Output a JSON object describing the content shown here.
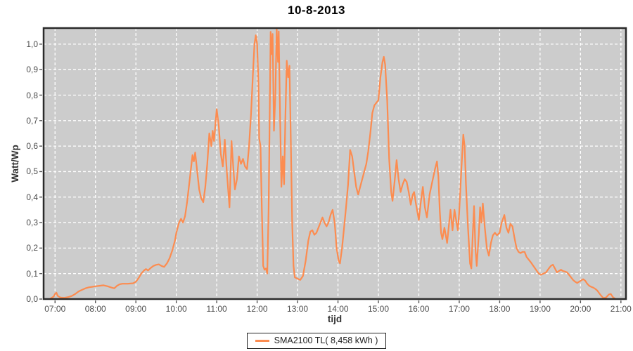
{
  "title": "10-8-2013",
  "colors": {
    "line": "#fc8c50",
    "plot_bg": "#cccccc",
    "grid": "#ffffff",
    "plot_border": "#2a2a2a",
    "tick_mark": "#555555",
    "tick_label": "#4d4d4d",
    "axis_title": "#333333"
  },
  "legend": {
    "label": "SMA2100 TL( 8,458 kWh )"
  },
  "chart_data": {
    "type": "line",
    "title": "10-8-2013",
    "xlabel": "tijd",
    "ylabel": "Watt/Wp",
    "x_ticks": [
      "07:00",
      "08:00",
      "09:00",
      "10:00",
      "11:00",
      "12:00",
      "13:00",
      "14:00",
      "15:00",
      "16:00",
      "17:00",
      "18:00",
      "19:00",
      "20:00",
      "21:00"
    ],
    "y_ticks": [
      "0,0",
      "0,1",
      "0,2",
      "0,3",
      "0,4",
      "0,5",
      "0,6",
      "0,7",
      "0,8",
      "0,9",
      "1,0"
    ],
    "y_tick_values": [
      0,
      0.1,
      0.2,
      0.3,
      0.4,
      0.5,
      0.6,
      0.7,
      0.8,
      0.9,
      1.0
    ],
    "ylim": [
      0,
      1.063
    ],
    "xlim_hours": [
      6.717,
      21.125
    ],
    "grid": "white dashed, hourly vertical and 0.1 horizontal, gray plot background",
    "legend_position": "bottom-center",
    "series": [
      {
        "name": "SMA2100 TL( 8,458 kWh )",
        "color": "#fc8c50",
        "points": [
          [
            "06:52",
            0
          ],
          [
            "06:55",
            0.005
          ],
          [
            "06:58",
            0.01
          ],
          [
            "07:00",
            0.02
          ],
          [
            "07:02",
            0.025
          ],
          [
            "07:04",
            0.012
          ],
          [
            "07:08",
            0.006
          ],
          [
            "07:14",
            0.005
          ],
          [
            "07:20",
            0.008
          ],
          [
            "07:25",
            0.012
          ],
          [
            "07:30",
            0.02
          ],
          [
            "07:35",
            0.03
          ],
          [
            "07:40",
            0.036
          ],
          [
            "07:45",
            0.042
          ],
          [
            "07:50",
            0.046
          ],
          [
            "07:55",
            0.048
          ],
          [
            "08:00",
            0.05
          ],
          [
            "08:06",
            0.052
          ],
          [
            "08:12",
            0.054
          ],
          [
            "08:18",
            0.05
          ],
          [
            "08:24",
            0.045
          ],
          [
            "08:28",
            0.042
          ],
          [
            "08:32",
            0.052
          ],
          [
            "08:36",
            0.058
          ],
          [
            "08:40",
            0.06
          ],
          [
            "08:48",
            0.06
          ],
          [
            "08:56",
            0.062
          ],
          [
            "09:00",
            0.068
          ],
          [
            "09:04",
            0.082
          ],
          [
            "09:08",
            0.1
          ],
          [
            "09:12",
            0.112
          ],
          [
            "09:15",
            0.118
          ],
          [
            "09:18",
            0.112
          ],
          [
            "09:22",
            0.122
          ],
          [
            "09:26",
            0.13
          ],
          [
            "09:30",
            0.134
          ],
          [
            "09:34",
            0.136
          ],
          [
            "09:38",
            0.13
          ],
          [
            "09:42",
            0.126
          ],
          [
            "09:46",
            0.14
          ],
          [
            "09:50",
            0.16
          ],
          [
            "09:54",
            0.19
          ],
          [
            "09:58",
            0.23
          ],
          [
            "10:00",
            0.26
          ],
          [
            "10:04",
            0.3
          ],
          [
            "10:07",
            0.315
          ],
          [
            "10:10",
            0.3
          ],
          [
            "10:13",
            0.325
          ],
          [
            "10:16",
            0.38
          ],
          [
            "10:20",
            0.47
          ],
          [
            "10:24",
            0.565
          ],
          [
            "10:26",
            0.54
          ],
          [
            "10:28",
            0.575
          ],
          [
            "10:31",
            0.5
          ],
          [
            "10:34",
            0.43
          ],
          [
            "10:37",
            0.395
          ],
          [
            "10:40",
            0.38
          ],
          [
            "10:43",
            0.44
          ],
          [
            "10:46",
            0.53
          ],
          [
            "10:49",
            0.65
          ],
          [
            "10:52",
            0.6
          ],
          [
            "10:54",
            0.66
          ],
          [
            "10:56",
            0.62
          ],
          [
            "11:00",
            0.745
          ],
          [
            "11:03",
            0.68
          ],
          [
            "11:06",
            0.57
          ],
          [
            "11:09",
            0.52
          ],
          [
            "11:12",
            0.625
          ],
          [
            "11:15",
            0.5
          ],
          [
            "11:17",
            0.43
          ],
          [
            "11:19",
            0.36
          ],
          [
            "11:22",
            0.62
          ],
          [
            "11:25",
            0.5
          ],
          [
            "11:27",
            0.43
          ],
          [
            "11:30",
            0.47
          ],
          [
            "11:33",
            0.56
          ],
          [
            "11:36",
            0.53
          ],
          [
            "11:39",
            0.55
          ],
          [
            "11:42",
            0.52
          ],
          [
            "11:45",
            0.51
          ],
          [
            "11:48",
            0.6
          ],
          [
            "11:51",
            0.73
          ],
          [
            "11:54",
            0.9
          ],
          [
            "11:56",
            1.0
          ],
          [
            "11:58",
            1.035
          ],
          [
            "12:00",
            1.0
          ],
          [
            "12:02",
            0.84
          ],
          [
            "12:03",
            0.63
          ],
          [
            "12:05",
            0.6
          ],
          [
            "12:07",
            0.35
          ],
          [
            "12:09",
            0.13
          ],
          [
            "12:11",
            0.115
          ],
          [
            "12:13",
            0.12
          ],
          [
            "12:15",
            0.1
          ],
          [
            "12:17",
            0.35
          ],
          [
            "12:19",
            0.8
          ],
          [
            "12:20",
            1.048
          ],
          [
            "12:21",
            0.96
          ],
          [
            "12:23",
            1.04
          ],
          [
            "12:25",
            0.66
          ],
          [
            "12:27",
            0.8
          ],
          [
            "12:29",
            1.06
          ],
          [
            "12:31",
            0.93
          ],
          [
            "12:32",
            1.05
          ],
          [
            "12:34",
            0.72
          ],
          [
            "12:36",
            0.44
          ],
          [
            "12:38",
            0.56
          ],
          [
            "12:40",
            0.45
          ],
          [
            "12:42",
            0.72
          ],
          [
            "12:44",
            0.935
          ],
          [
            "12:46",
            0.87
          ],
          [
            "12:48",
            0.915
          ],
          [
            "12:50",
            0.62
          ],
          [
            "12:52",
            0.3
          ],
          [
            "12:54",
            0.13
          ],
          [
            "12:56",
            0.085
          ],
          [
            "13:00",
            0.08
          ],
          [
            "13:04",
            0.075
          ],
          [
            "13:08",
            0.09
          ],
          [
            "13:12",
            0.15
          ],
          [
            "13:16",
            0.23
          ],
          [
            "13:19",
            0.265
          ],
          [
            "13:22",
            0.27
          ],
          [
            "13:25",
            0.252
          ],
          [
            "13:28",
            0.26
          ],
          [
            "13:31",
            0.28
          ],
          [
            "13:34",
            0.3
          ],
          [
            "13:37",
            0.32
          ],
          [
            "13:40",
            0.3
          ],
          [
            "13:43",
            0.285
          ],
          [
            "13:46",
            0.3
          ],
          [
            "13:49",
            0.33
          ],
          [
            "13:52",
            0.35
          ],
          [
            "13:55",
            0.3
          ],
          [
            "13:58",
            0.2
          ],
          [
            "14:01",
            0.15
          ],
          [
            "14:03",
            0.14
          ],
          [
            "14:06",
            0.2
          ],
          [
            "14:09",
            0.28
          ],
          [
            "14:12",
            0.36
          ],
          [
            "14:15",
            0.45
          ],
          [
            "14:18",
            0.585
          ],
          [
            "14:21",
            0.56
          ],
          [
            "14:24",
            0.5
          ],
          [
            "14:27",
            0.44
          ],
          [
            "14:30",
            0.41
          ],
          [
            "14:33",
            0.44
          ],
          [
            "14:36",
            0.47
          ],
          [
            "14:39",
            0.5
          ],
          [
            "14:42",
            0.53
          ],
          [
            "14:45",
            0.58
          ],
          [
            "14:48",
            0.65
          ],
          [
            "14:51",
            0.73
          ],
          [
            "14:54",
            0.76
          ],
          [
            "14:57",
            0.77
          ],
          [
            "15:00",
            0.78
          ],
          [
            "15:03",
            0.87
          ],
          [
            "15:06",
            0.93
          ],
          [
            "15:08",
            0.95
          ],
          [
            "15:10",
            0.92
          ],
          [
            "15:13",
            0.78
          ],
          [
            "15:16",
            0.55
          ],
          [
            "15:19",
            0.42
          ],
          [
            "15:21",
            0.385
          ],
          [
            "15:24",
            0.46
          ],
          [
            "15:27",
            0.545
          ],
          [
            "15:30",
            0.47
          ],
          [
            "15:33",
            0.42
          ],
          [
            "15:36",
            0.45
          ],
          [
            "15:39",
            0.47
          ],
          [
            "15:42",
            0.46
          ],
          [
            "15:45",
            0.42
          ],
          [
            "15:48",
            0.37
          ],
          [
            "15:51",
            0.41
          ],
          [
            "15:53",
            0.42
          ],
          [
            "15:56",
            0.37
          ],
          [
            "16:00",
            0.31
          ],
          [
            "16:03",
            0.38
          ],
          [
            "16:06",
            0.44
          ],
          [
            "16:09",
            0.36
          ],
          [
            "16:12",
            0.32
          ],
          [
            "16:16",
            0.41
          ],
          [
            "16:20",
            0.46
          ],
          [
            "16:24",
            0.51
          ],
          [
            "16:27",
            0.54
          ],
          [
            "16:29",
            0.48
          ],
          [
            "16:31",
            0.35
          ],
          [
            "16:33",
            0.26
          ],
          [
            "16:35",
            0.235
          ],
          [
            "16:38",
            0.28
          ],
          [
            "16:40",
            0.25
          ],
          [
            "16:42",
            0.22
          ],
          [
            "16:45",
            0.3
          ],
          [
            "16:47",
            0.35
          ],
          [
            "16:50",
            0.27
          ],
          [
            "16:53",
            0.35
          ],
          [
            "16:56",
            0.3
          ],
          [
            "16:58",
            0.27
          ],
          [
            "17:00",
            0.34
          ],
          [
            "17:03",
            0.5
          ],
          [
            "17:06",
            0.645
          ],
          [
            "17:08",
            0.6
          ],
          [
            "17:10",
            0.45
          ],
          [
            "17:13",
            0.28
          ],
          [
            "17:16",
            0.14
          ],
          [
            "17:18",
            0.12
          ],
          [
            "17:20",
            0.25
          ],
          [
            "17:22",
            0.365
          ],
          [
            "17:24",
            0.2
          ],
          [
            "17:26",
            0.13
          ],
          [
            "17:29",
            0.25
          ],
          [
            "17:31",
            0.36
          ],
          [
            "17:33",
            0.3
          ],
          [
            "17:35",
            0.375
          ],
          [
            "17:38",
            0.28
          ],
          [
            "17:41",
            0.2
          ],
          [
            "17:44",
            0.17
          ],
          [
            "17:47",
            0.22
          ],
          [
            "17:50",
            0.25
          ],
          [
            "17:53",
            0.26
          ],
          [
            "17:56",
            0.25
          ],
          [
            "18:00",
            0.26
          ],
          [
            "18:03",
            0.3
          ],
          [
            "18:07",
            0.33
          ],
          [
            "18:10",
            0.28
          ],
          [
            "18:13",
            0.26
          ],
          [
            "18:16",
            0.295
          ],
          [
            "18:19",
            0.285
          ],
          [
            "18:22",
            0.24
          ],
          [
            "18:25",
            0.2
          ],
          [
            "18:28",
            0.185
          ],
          [
            "18:31",
            0.18
          ],
          [
            "18:34",
            0.185
          ],
          [
            "18:37",
            0.185
          ],
          [
            "18:40",
            0.165
          ],
          [
            "18:43",
            0.155
          ],
          [
            "18:46",
            0.145
          ],
          [
            "18:50",
            0.13
          ],
          [
            "18:54",
            0.115
          ],
          [
            "18:58",
            0.1
          ],
          [
            "19:01",
            0.095
          ],
          [
            "19:05",
            0.1
          ],
          [
            "19:09",
            0.105
          ],
          [
            "19:13",
            0.12
          ],
          [
            "19:16",
            0.13
          ],
          [
            "19:19",
            0.135
          ],
          [
            "19:22",
            0.12
          ],
          [
            "19:25",
            0.105
          ],
          [
            "19:28",
            0.11
          ],
          [
            "19:31",
            0.115
          ],
          [
            "19:34",
            0.11
          ],
          [
            "19:37",
            0.108
          ],
          [
            "19:40",
            0.105
          ],
          [
            "19:43",
            0.095
          ],
          [
            "19:46",
            0.085
          ],
          [
            "19:49",
            0.075
          ],
          [
            "19:52",
            0.068
          ],
          [
            "19:55",
            0.063
          ],
          [
            "19:58",
            0.068
          ],
          [
            "20:01",
            0.073
          ],
          [
            "20:04",
            0.078
          ],
          [
            "20:07",
            0.072
          ],
          [
            "20:10",
            0.06
          ],
          [
            "20:13",
            0.052
          ],
          [
            "20:16",
            0.048
          ],
          [
            "20:19",
            0.045
          ],
          [
            "20:22",
            0.04
          ],
          [
            "20:25",
            0.033
          ],
          [
            "20:28",
            0.022
          ],
          [
            "20:31",
            0.012
          ],
          [
            "20:34",
            0.004
          ],
          [
            "20:38",
            0.006
          ],
          [
            "20:42",
            0.018
          ],
          [
            "20:45",
            0.02
          ],
          [
            "20:48",
            0.008
          ],
          [
            "20:52",
            0
          ]
        ]
      }
    ]
  }
}
